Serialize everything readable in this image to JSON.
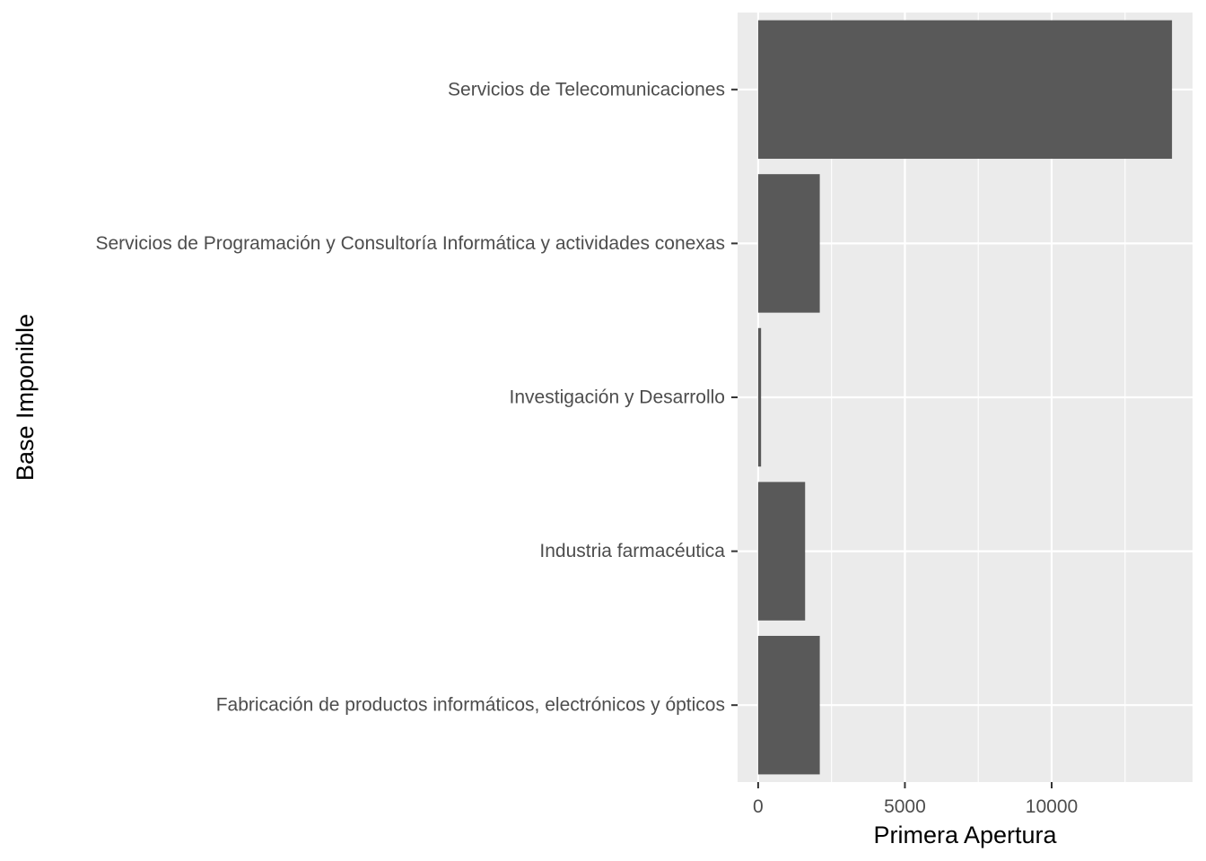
{
  "chart_data": {
    "type": "bar",
    "orientation": "horizontal",
    "categories": [
      "Fabricación de productos informáticos, electrónicos y ópticos",
      "Industria farmacéutica",
      "Investigación y Desarrollo",
      "Servicios de Programación y Consultoría Informática y actividades conexas",
      "Servicios de Telecomunicaciones"
    ],
    "values": [
      2100,
      1600,
      100,
      2100,
      14100
    ],
    "xlabel": "Primera Apertura",
    "ylabel": "Base Imponible",
    "xlim": [
      -700,
      14800
    ],
    "xticks": [
      0,
      5000,
      10000
    ],
    "xtick_labels": [
      "0",
      "5000",
      "10000"
    ],
    "grid": true,
    "colors": {
      "bar": "#595959",
      "panel": "#ebebeb",
      "grid": "#ffffff",
      "tick": "#333333"
    }
  }
}
